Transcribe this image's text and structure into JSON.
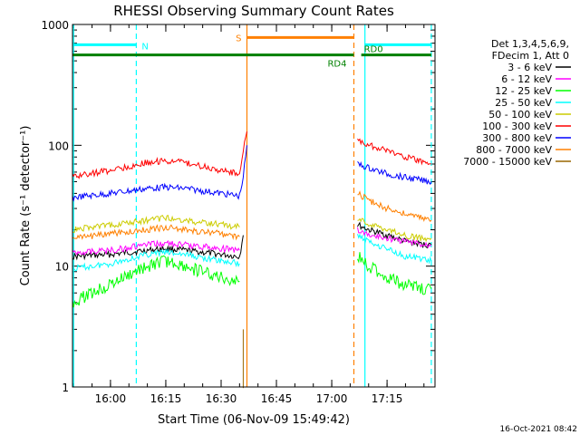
{
  "chart_data": {
    "type": "line",
    "title": "RHESSI Observing Summary Count Rates",
    "xlabel": "Start Time (06-Nov-09 15:49:42)",
    "ylabel": "Count Rate (s⁻¹ detector⁻¹)",
    "x_unit": "minutes",
    "xlim": [
      "15:49:42",
      "17:28:00"
    ],
    "ylim": [
      1,
      1000
    ],
    "yscale": "log",
    "x_ticks": [
      "16:00",
      "16:15",
      "16:30",
      "16:45",
      "17:00",
      "17:15"
    ],
    "y_ticks": [
      "1",
      "10",
      "100",
      "1000"
    ],
    "legend": {
      "placement": "right",
      "header": [
        "Det 1,3,4,5,6,9,",
        "FDecim 1, Att 0"
      ]
    },
    "series": [
      {
        "name": "3 - 6 keV",
        "color": "#000000",
        "points": [
          [
            "15:49:42",
            12
          ],
          [
            "16:00",
            12.5
          ],
          [
            "16:10",
            13.5
          ],
          [
            "16:15",
            14
          ],
          [
            "16:20",
            13.5
          ],
          [
            "16:30",
            12.5
          ],
          [
            "16:35",
            12
          ],
          [
            "16:36",
            18
          ],
          [
            "16:37",
            null
          ],
          [
            "17:07",
            22
          ],
          [
            "17:10",
            20
          ],
          [
            "17:15",
            18
          ],
          [
            "17:20",
            16
          ],
          [
            "17:25",
            15
          ],
          [
            "17:27",
            15
          ]
        ]
      },
      {
        "name": "6 - 12 keV",
        "color": "#ff00ff",
        "points": [
          [
            "15:49:42",
            13
          ],
          [
            "16:00",
            13.5
          ],
          [
            "16:10",
            15
          ],
          [
            "16:15",
            15.5
          ],
          [
            "16:20",
            15
          ],
          [
            "16:30",
            14
          ],
          [
            "16:35",
            13.5
          ],
          [
            "16:37",
            null
          ],
          [
            "17:07",
            20
          ],
          [
            "17:10",
            18
          ],
          [
            "17:15",
            17
          ],
          [
            "17:20",
            16
          ],
          [
            "17:25",
            15
          ],
          [
            "17:27",
            15
          ]
        ]
      },
      {
        "name": "12 - 25 keV",
        "color": "#00ff00",
        "points": [
          [
            "15:49:42",
            5
          ],
          [
            "15:55",
            6
          ],
          [
            "16:00",
            7
          ],
          [
            "16:10",
            10
          ],
          [
            "16:15",
            11
          ],
          [
            "16:20",
            10
          ],
          [
            "16:30",
            8
          ],
          [
            "16:35",
            7.5
          ],
          [
            "16:37",
            null
          ],
          [
            "17:07",
            12
          ],
          [
            "17:10",
            10
          ],
          [
            "17:15",
            8
          ],
          [
            "17:20",
            7
          ],
          [
            "17:25",
            6.5
          ],
          [
            "17:27",
            6.5
          ]
        ]
      },
      {
        "name": "25 - 50 keV",
        "color": "#00ffff",
        "points": [
          [
            "15:49:42",
            9.5
          ],
          [
            "16:00",
            10.5
          ],
          [
            "16:10",
            12.5
          ],
          [
            "16:15",
            13
          ],
          [
            "16:20",
            12.5
          ],
          [
            "16:30",
            11
          ],
          [
            "16:35",
            10.5
          ],
          [
            "16:37",
            null
          ],
          [
            "17:07",
            18
          ],
          [
            "17:10",
            16
          ],
          [
            "17:15",
            14
          ],
          [
            "17:20",
            12
          ],
          [
            "17:25",
            11.5
          ],
          [
            "17:27",
            11
          ]
        ]
      },
      {
        "name": "50 - 100 keV",
        "color": "#cccc00",
        "points": [
          [
            "15:49:42",
            20
          ],
          [
            "16:00",
            22
          ],
          [
            "16:10",
            24
          ],
          [
            "16:15",
            25
          ],
          [
            "16:20",
            24
          ],
          [
            "16:30",
            22
          ],
          [
            "16:35",
            21
          ],
          [
            "16:37",
            null
          ],
          [
            "17:07",
            25
          ],
          [
            "17:10",
            22
          ],
          [
            "17:15",
            20
          ],
          [
            "17:20",
            18
          ],
          [
            "17:25",
            17
          ],
          [
            "17:27",
            17
          ]
        ]
      },
      {
        "name": "100 - 300 keV",
        "color": "#ff0000",
        "points": [
          [
            "15:49:42",
            55
          ],
          [
            "16:00",
            62
          ],
          [
            "16:10",
            72
          ],
          [
            "16:15",
            75
          ],
          [
            "16:20",
            72
          ],
          [
            "16:30",
            62
          ],
          [
            "16:35",
            58
          ],
          [
            "16:36",
            90
          ],
          [
            "16:37",
            130
          ],
          [
            "16:38",
            null
          ],
          [
            "17:07",
            110
          ],
          [
            "17:10",
            100
          ],
          [
            "17:15",
            90
          ],
          [
            "17:20",
            80
          ],
          [
            "17:25",
            72
          ],
          [
            "17:27",
            70
          ]
        ]
      },
      {
        "name": "300 - 800 keV",
        "color": "#0000ff",
        "points": [
          [
            "15:49:42",
            37
          ],
          [
            "16:00",
            40
          ],
          [
            "16:10",
            44
          ],
          [
            "16:15",
            45
          ],
          [
            "16:20",
            44
          ],
          [
            "16:30",
            40
          ],
          [
            "16:35",
            38
          ],
          [
            "16:36",
            55
          ],
          [
            "16:37",
            100
          ],
          [
            "16:38",
            null
          ],
          [
            "17:07",
            70
          ],
          [
            "17:10",
            65
          ],
          [
            "17:15",
            58
          ],
          [
            "17:20",
            54
          ],
          [
            "17:25",
            51
          ],
          [
            "17:27",
            50
          ]
        ]
      },
      {
        "name": "800 - 7000 keV",
        "color": "#ff8000",
        "points": [
          [
            "15:49:42",
            17
          ],
          [
            "16:00",
            18.5
          ],
          [
            "16:10",
            20
          ],
          [
            "16:15",
            21
          ],
          [
            "16:20",
            20
          ],
          [
            "16:30",
            18.5
          ],
          [
            "16:35",
            17.5
          ],
          [
            "16:37",
            null
          ],
          [
            "17:07",
            40
          ],
          [
            "17:10",
            35
          ],
          [
            "17:15",
            30
          ],
          [
            "17:20",
            27
          ],
          [
            "17:25",
            25
          ],
          [
            "17:27",
            24
          ]
        ]
      },
      {
        "name": "7000 - 15000 keV",
        "color": "#996600",
        "points": [
          [
            "16:36",
            1
          ],
          [
            "16:36",
            3
          ],
          [
            "16:37",
            null
          ]
        ]
      }
    ],
    "state_bars": [
      {
        "label": "N",
        "color": "#00ffff",
        "level": 680,
        "segments": [
          [
            "15:49:42",
            "16:07"
          ],
          [
            "17:09",
            "17:27"
          ]
        ]
      },
      {
        "label": "S",
        "color": "#ff8000",
        "level": 780,
        "segments": [
          [
            "16:37",
            "17:06"
          ]
        ]
      },
      {
        "label": "RD4",
        "color": "#008000",
        "level": 560,
        "segments": [
          [
            "15:49:42",
            "17:06"
          ]
        ]
      },
      {
        "label": "RD0",
        "color": "#008000",
        "level": 560,
        "segments": [
          [
            "17:08",
            "17:27"
          ]
        ]
      }
    ],
    "vertical_markers": [
      {
        "time": "15:50",
        "color": "#00ffff",
        "style": "solid"
      },
      {
        "time": "16:07",
        "color": "#00ffff",
        "style": "dashed"
      },
      {
        "time": "16:37",
        "color": "#ff8000",
        "style": "solid"
      },
      {
        "time": "17:06",
        "color": "#ff8000",
        "style": "dashed"
      },
      {
        "time": "17:09",
        "color": "#00ffff",
        "style": "solid"
      },
      {
        "time": "17:27",
        "color": "#00ffff",
        "style": "dashed"
      }
    ],
    "footer": "16-Oct-2021 08:42"
  }
}
